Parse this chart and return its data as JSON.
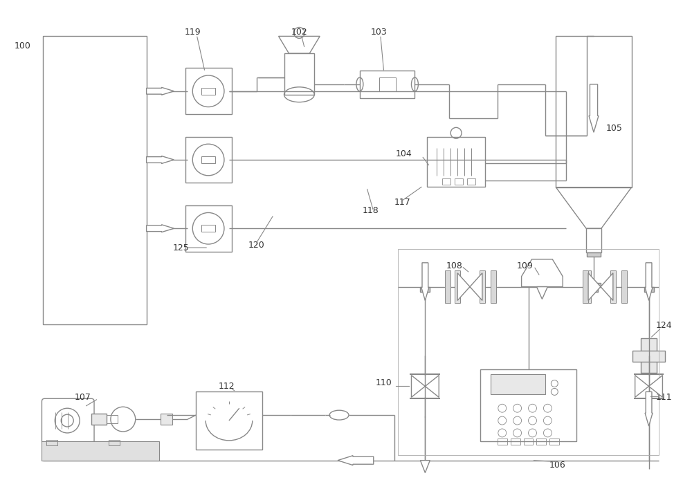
{
  "bg": "#ffffff",
  "lc": "#888888",
  "lw": 1.0,
  "fs": 9,
  "tc": "#333333",
  "pipe_lc": "#888888",
  "green_lc": "#7aab96"
}
